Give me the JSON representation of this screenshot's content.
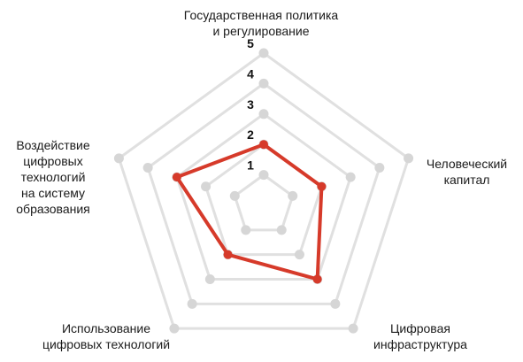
{
  "chart_data": {
    "type": "radar",
    "axes": [
      "Государственная политика\nи регулирование",
      "Человеческий\nкапитал",
      "Цифровая\nинфраструктура",
      "Использование\nцифровых технологий",
      "Воздействие\nцифровых\nтехнологий\nна систему\nобразования"
    ],
    "rlim": [
      0,
      5
    ],
    "ticks": [
      "1",
      "2",
      "3",
      "4",
      "5"
    ],
    "series": [
      {
        "values": [
          2,
          2,
          3,
          2,
          3
        ]
      }
    ],
    "grid": true,
    "colors": {
      "series": "#d63a2a",
      "grid": "#e0e0e0",
      "grid_dot": "#d6d6d6"
    }
  }
}
